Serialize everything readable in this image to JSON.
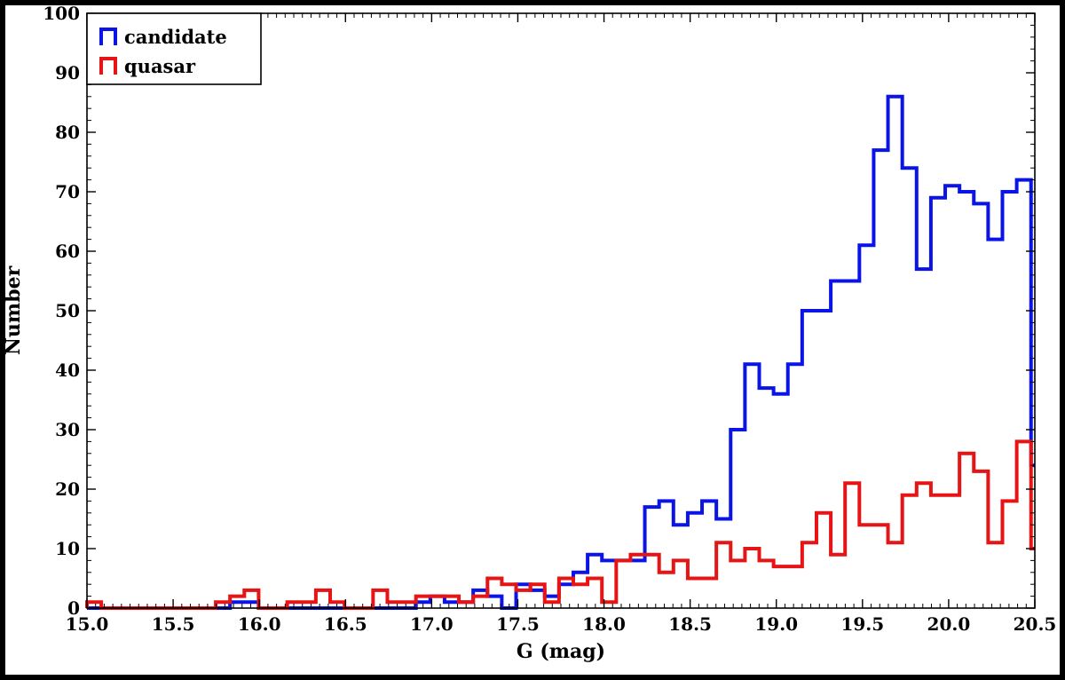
{
  "chart_data": {
    "type": "histogram",
    "title": "",
    "xlabel": "G (mag)",
    "ylabel": "Number",
    "xlim": [
      15.0,
      20.5
    ],
    "ylim": [
      0,
      100
    ],
    "x_ticks": [
      "15.0",
      "15.5",
      "16.0",
      "16.5",
      "17.0",
      "17.5",
      "18.0",
      "18.5",
      "19.0",
      "19.5",
      "20.0",
      "20.5"
    ],
    "y_ticks": [
      "0",
      "10",
      "20",
      "30",
      "40",
      "50",
      "60",
      "70",
      "80",
      "90",
      "100"
    ],
    "bin_width": 0.083,
    "legend_position": "top-left",
    "grid": false,
    "series": [
      {
        "name": "candidate",
        "color": "#0a14e6",
        "x_start": 15.0,
        "values": [
          0,
          0,
          0,
          0,
          0,
          0,
          0,
          0,
          0,
          0,
          1,
          1,
          0,
          0,
          0,
          0,
          0,
          0,
          0,
          0,
          0,
          0,
          0,
          1,
          2,
          1,
          1,
          3,
          2,
          0,
          4,
          3,
          2,
          4,
          6,
          9,
          8,
          8,
          8,
          17,
          18,
          14,
          16,
          18,
          15,
          30,
          41,
          37,
          36,
          41,
          50,
          50,
          55,
          55,
          61,
          77,
          86,
          74,
          57,
          69,
          71,
          70,
          68,
          62,
          70,
          72,
          24
        ]
      },
      {
        "name": "quasar",
        "color": "#e61414",
        "x_start": 15.0,
        "values": [
          1,
          0,
          0,
          0,
          0,
          0,
          0,
          0,
          0,
          1,
          2,
          3,
          0,
          0,
          1,
          1,
          3,
          1,
          0,
          0,
          3,
          1,
          1,
          2,
          2,
          2,
          1,
          2,
          5,
          4,
          3,
          4,
          1,
          5,
          4,
          5,
          1,
          8,
          9,
          9,
          6,
          8,
          5,
          5,
          11,
          8,
          10,
          8,
          7,
          7,
          11,
          16,
          9,
          21,
          14,
          14,
          11,
          19,
          21,
          19,
          19,
          26,
          23,
          11,
          18,
          28,
          10
        ]
      }
    ]
  }
}
